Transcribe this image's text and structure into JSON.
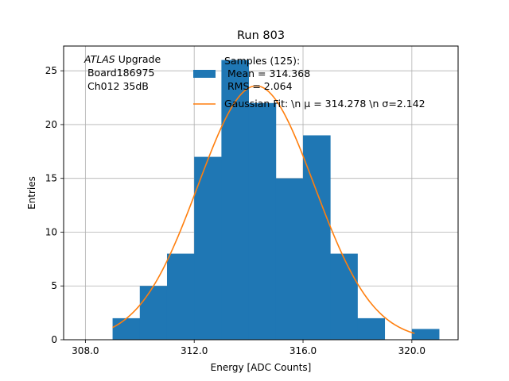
{
  "chart_data": {
    "type": "bar",
    "title": "Run 803",
    "xlabel": "Energy [ADC Counts]",
    "ylabel": "Entries",
    "xlim": [
      307.2,
      321.7
    ],
    "ylim": [
      0,
      27.3
    ],
    "grid": true,
    "legend_position": "top-right",
    "x_ticks": [
      308.0,
      312.0,
      316.0,
      320.0
    ],
    "x_tick_labels": [
      "308.0",
      "312.0",
      "316.0",
      "320.0"
    ],
    "y_ticks": [
      0,
      5,
      10,
      15,
      20,
      25
    ],
    "y_tick_labels": [
      "0",
      "5",
      "10",
      "15",
      "20",
      "25"
    ],
    "bins": [
      {
        "lo": 309,
        "hi": 310,
        "count": 2
      },
      {
        "lo": 310,
        "hi": 311,
        "count": 5
      },
      {
        "lo": 311,
        "hi": 312,
        "count": 8
      },
      {
        "lo": 312,
        "hi": 313,
        "count": 17
      },
      {
        "lo": 313,
        "hi": 314,
        "count": 26
      },
      {
        "lo": 314,
        "hi": 315,
        "count": 22
      },
      {
        "lo": 315,
        "hi": 316,
        "count": 15
      },
      {
        "lo": 316,
        "hi": 317,
        "count": 19
      },
      {
        "lo": 317,
        "hi": 318,
        "count": 8
      },
      {
        "lo": 318,
        "hi": 319,
        "count": 2
      },
      {
        "lo": 319,
        "hi": 320,
        "count": 0
      },
      {
        "lo": 320,
        "hi": 321,
        "count": 1
      }
    ],
    "fit": {
      "amplitude": 23.6,
      "mu": 314.278,
      "sigma": 2.142,
      "x_range": [
        309.0,
        320.1
      ]
    },
    "annotation": {
      "italic": "ATLAS",
      "rest": " Upgrade",
      "lines": [
        " Board186975",
        " Ch012 35dB"
      ]
    },
    "series": [
      {
        "name": "Samples (125):",
        "color": "#1f77b4",
        "legend_lines": [
          " Mean = 314.368",
          " RMS = 2.064"
        ]
      },
      {
        "name": "Gaussian Fit: \\n μ = 314.278 \\n σ=2.142",
        "color": "#ff7f0e"
      }
    ]
  }
}
